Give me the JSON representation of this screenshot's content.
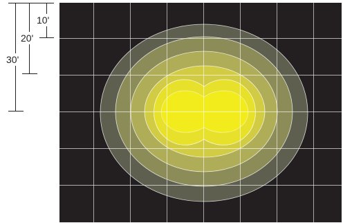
{
  "scale": {
    "labels": [
      "10'",
      "20'",
      "30'"
    ],
    "color": "#231f20"
  },
  "plot": {
    "background": "#231f20",
    "grid_color": "#ffffff",
    "grid_columns": 8,
    "grid_rows": 6
  },
  "contours": [
    {
      "level": 1,
      "fill": "#5f5f50"
    },
    {
      "level": 2,
      "fill": "#8c8c58"
    },
    {
      "level": 3,
      "fill": "#b0ad58"
    },
    {
      "level": 4,
      "fill": "#d1cc43"
    },
    {
      "level": 5,
      "fill": "#e7e12c"
    },
    {
      "level": 6,
      "fill": "#f3ec1c"
    }
  ]
}
